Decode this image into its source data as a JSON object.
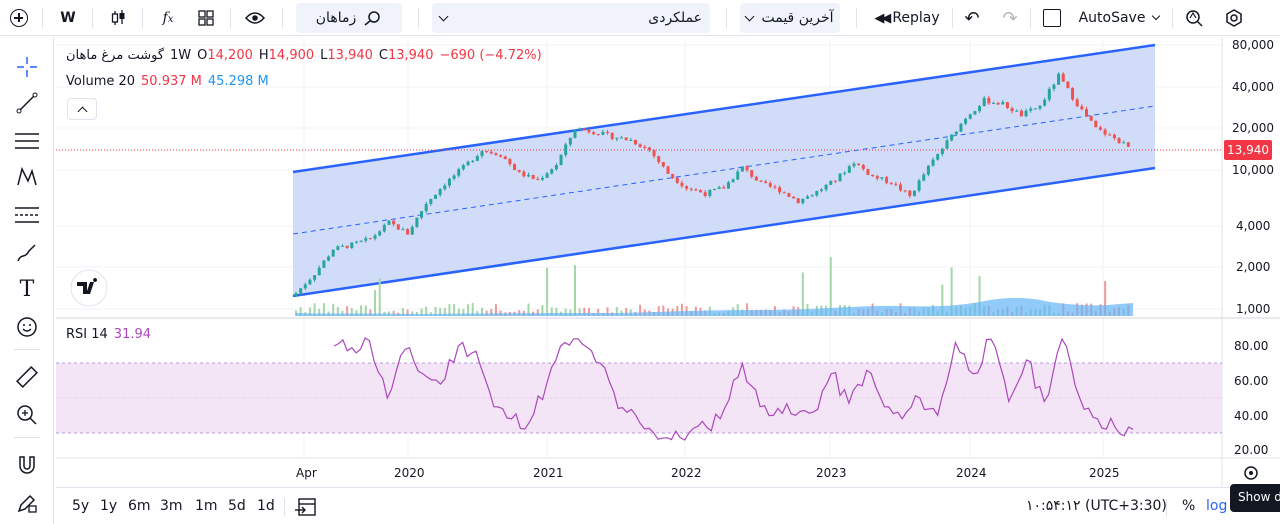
{
  "toolbar": {
    "interval": "W",
    "compare_label": "زماهان",
    "indicators_placeholder": "عملکردی",
    "price_type": "آخرین قیمت",
    "replay": "Replay",
    "autosave": "AutoSave"
  },
  "legend": {
    "symbol": "گوشت مرغ ماهان",
    "interval": "1W",
    "open_label": "O",
    "open": "14,200",
    "high_label": "H",
    "high": "14,900",
    "low_label": "L",
    "low": "13,940",
    "close_label": "C",
    "close": "13,940",
    "change": "−690 (−4.72%)",
    "volume_label": "Volume 20",
    "volume_a": "50.937 M",
    "volume_b": "45.298 M",
    "rsi_label": "RSI 14",
    "rsi_value": "31.94"
  },
  "price_axis": {
    "ticks": [
      "80,000",
      "40,000",
      "20,000",
      "10,000",
      "4,000",
      "2,000",
      "1,000"
    ],
    "current": "13,940"
  },
  "rsi_axis": {
    "ticks": [
      "80.00",
      "60.00",
      "40.00",
      "20.00"
    ]
  },
  "time_axis": {
    "labels": [
      "Apr",
      "2020",
      "2021",
      "2022",
      "2023",
      "2024",
      "2025"
    ]
  },
  "bottom": {
    "ranges": [
      "5y",
      "1y",
      "6m",
      "3m",
      "1m",
      "5d",
      "1d"
    ],
    "clock": "۱۰:۵۴:۱۲ (UTC+3:30)",
    "percent": "%",
    "log": "log",
    "tooltip": "Show d"
  },
  "colors": {
    "up": "#26a69a",
    "down": "#ef5350",
    "channel": "#2962ff",
    "channel_fill": "#c9d6f8",
    "rsi_line": "#ab47bc",
    "rsi_band": "#f3e5f5",
    "volume": "#90caf9",
    "price_label": "#f23645"
  },
  "chart_data": {
    "type": "candlestick",
    "interval": "1W",
    "y_scale": "log",
    "close_series": [
      1300,
      1800,
      2700,
      2900,
      3200,
      4200,
      3500,
      5800,
      8000,
      10500,
      14000,
      13000,
      9500,
      8500,
      11000,
      20000,
      19000,
      17500,
      16500,
      14000,
      9500,
      7500,
      6800,
      7500,
      10500,
      8000,
      7200,
      6000,
      7000,
      8500,
      11500,
      9000,
      8200,
      6500,
      10500,
      16000,
      24000,
      32000,
      30000,
      25000,
      29000,
      48000,
      30000,
      20000,
      17000,
      13940
    ],
    "rsi_series": [
      80,
      79,
      83,
      50,
      78,
      64,
      58,
      80,
      77,
      45,
      38,
      36,
      59,
      82,
      81,
      70,
      44,
      40,
      30,
      26,
      30,
      33,
      44,
      70,
      45,
      44,
      40,
      42,
      64,
      47,
      66,
      45,
      38,
      50,
      40,
      82,
      64,
      84,
      48,
      72,
      48,
      84,
      50,
      38,
      33,
      31.94
    ]
  }
}
